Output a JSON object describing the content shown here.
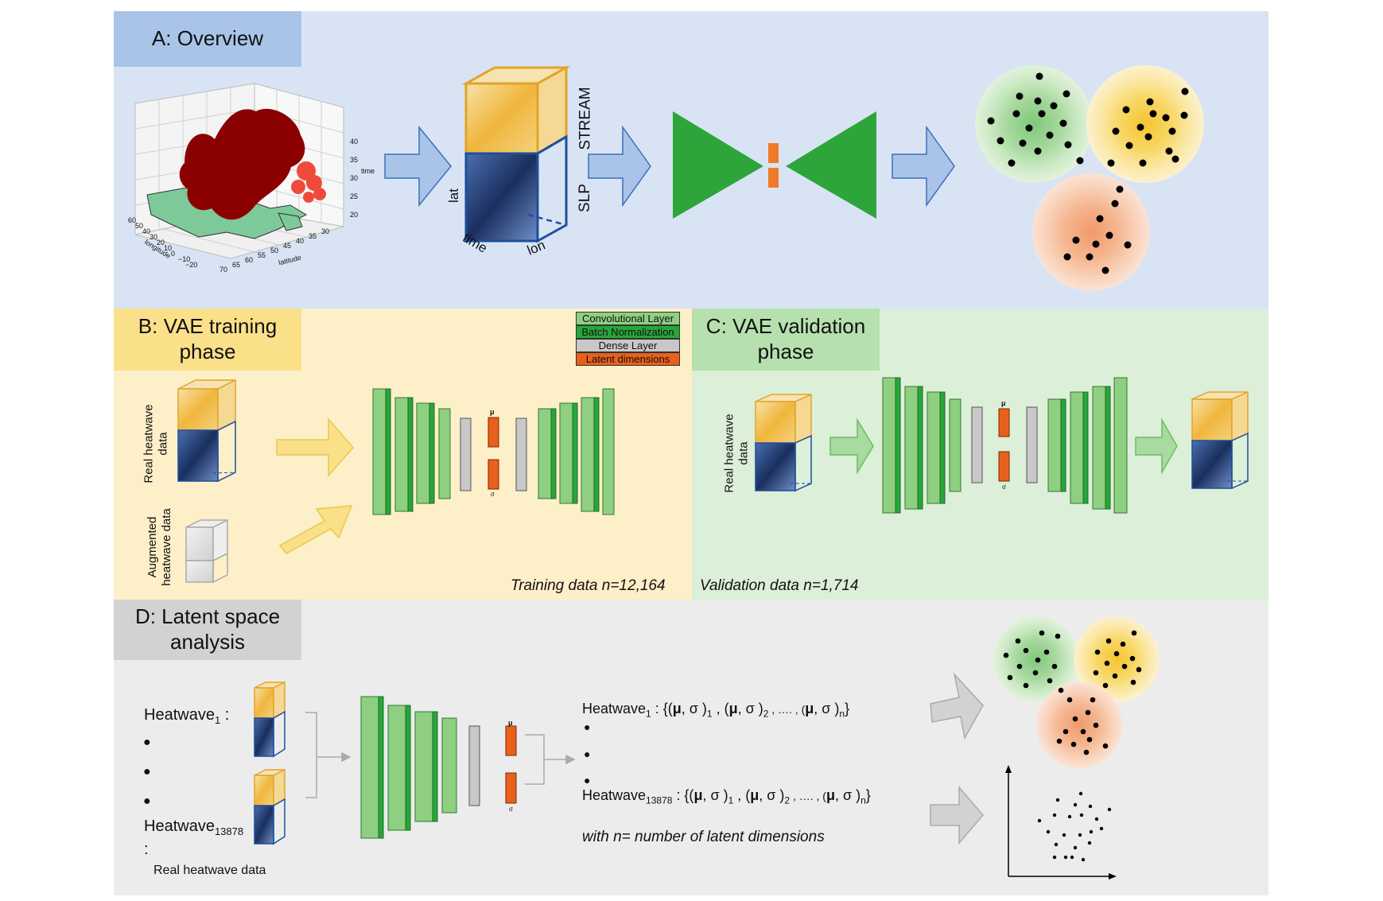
{
  "panels": {
    "A": {
      "title": "A: Overview",
      "bg": "#d8e4f4",
      "title_bg": "#a9c4e8"
    },
    "B": {
      "title_line1": "B: VAE training",
      "title_line2": "phase",
      "bg": "#fdefc8",
      "title_bg": "#fbe08a"
    },
    "C": {
      "title_line1": "C: VAE validation",
      "title_line2": "phase",
      "bg": "#dcefd8",
      "title_bg": "#b6e0ae"
    },
    "D": {
      "title_line1": "D: Latent space",
      "title_line2": "analysis",
      "bg": "#ececec",
      "title_bg": "#d2d2d2"
    }
  },
  "overview": {
    "axis_time": "time",
    "axis_longitude": "longitude",
    "axis_latitude": "latitude",
    "time_ticks": [
      "40",
      "35",
      "30",
      "25",
      "20"
    ],
    "lon_ticks": [
      "60",
      "50",
      "40",
      "30",
      "20",
      "10",
      "0",
      "−10",
      "−20"
    ],
    "lat_ticks": [
      "70",
      "65",
      "60",
      "55",
      "50",
      "45",
      "40",
      "35",
      "30"
    ],
    "cube_label_stream": "STREAM",
    "cube_label_slp": "SLP",
    "cube_label_lat": "lat",
    "cube_label_time": "time",
    "cube_label_lon": "lon"
  },
  "legend": {
    "conv": "Convolutional Layer",
    "batch": "Batch Normalization",
    "dense": "Dense Layer",
    "latent": "Latent dimensions",
    "colors": {
      "conv": "#8fcf82",
      "batch": "#27a63a",
      "dense": "#c8c8c8",
      "latent": "#e8601c"
    }
  },
  "training": {
    "real_label_1": "Real heatwave",
    "real_label_2": "data",
    "aug_label_1": "Augmented",
    "aug_label_2": "heatwave data",
    "mu": "μ",
    "sigma": "σ",
    "note": "Training data n=12,164"
  },
  "validation": {
    "real_label_1": "Real heatwave",
    "real_label_2": "data",
    "mu": "μ",
    "sigma": "σ",
    "note": "Validation data n=1,714"
  },
  "latent": {
    "hw1_label": "Heatwave",
    "hw1_sub": "1",
    "hw1_colon": " :",
    "hwN_label": "Heatwave",
    "hwN_sub": "13878",
    "hwN_colon": ":",
    "real_label": "Real heatwave data",
    "bullet": "●",
    "mu": "μ",
    "sigma": "σ",
    "eq1_name": "Heatwave",
    "eq1_sub": "1",
    "eqN_name": "Heatwave",
    "eqN_sub": "13878",
    "eq_body_a": " : {(",
    "eq_mu": "μ",
    "eq_comma": ", σ )",
    "eq_s1": "1",
    "eq_mid": " , (",
    "eq_s2": "2",
    "eq_dots": " , …. , (",
    "eq_sn": "n",
    "eq_close": "}",
    "note": "with n= number of latent dimensions"
  }
}
